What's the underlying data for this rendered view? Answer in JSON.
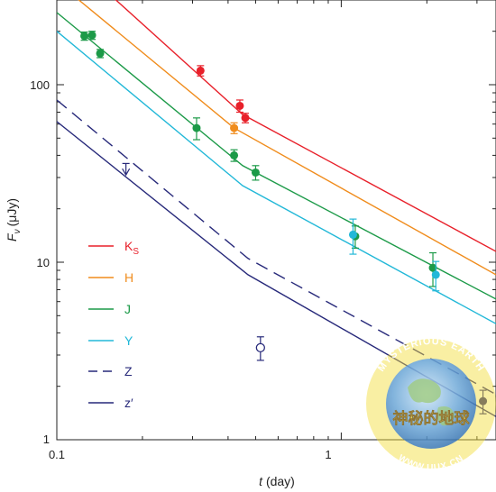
{
  "chart_data": {
    "type": "scatter",
    "xscale": "log",
    "yscale": "log",
    "xlim": [
      0.1,
      3.5
    ],
    "ylim": [
      1,
      300
    ],
    "grid": false,
    "legend_position": "left",
    "xticks": [
      0.1,
      1
    ],
    "xtick_labels": [
      "0.1",
      "1"
    ],
    "yticks": [
      1,
      10,
      100
    ],
    "ytick_labels": [
      "1",
      "10",
      "100"
    ],
    "xlabel_symbol": "t",
    "xlabel_unit": "(day)",
    "ylabel_symbol": "F",
    "ylabel_subscript": "ν",
    "ylabel_unit": "(μJy)",
    "series": [
      {
        "name": "K",
        "name_sub": "S",
        "color": "#e8202a",
        "style": "solid",
        "model": [
          [
            0.1,
            600
          ],
          [
            0.45,
            68
          ],
          [
            3.5,
            11.5
          ]
        ],
        "points": [
          {
            "x": 0.32,
            "y": 120,
            "err": 8
          },
          {
            "x": 0.44,
            "y": 76,
            "err": 6
          },
          {
            "x": 0.46,
            "y": 65,
            "err": 4
          }
        ]
      },
      {
        "name": "H",
        "color": "#f08c1c",
        "style": "solid",
        "model": [
          [
            0.1,
            380
          ],
          [
            0.42,
            57
          ],
          [
            3.5,
            8.5
          ]
        ],
        "points": [
          {
            "x": 0.42,
            "y": 57,
            "err": 4
          }
        ]
      },
      {
        "name": "J",
        "color": "#1c9a48",
        "style": "solid",
        "model": [
          [
            0.1,
            255
          ],
          [
            0.45,
            35
          ],
          [
            3.5,
            6.2
          ]
        ],
        "points": [
          {
            "x": 0.125,
            "y": 188,
            "err": 10
          },
          {
            "x": 0.133,
            "y": 190,
            "err": 10
          },
          {
            "x": 0.142,
            "y": 150,
            "err": 8
          },
          {
            "x": 0.31,
            "y": 57,
            "err": 8
          },
          {
            "x": 0.42,
            "y": 40,
            "err": 3
          },
          {
            "x": 0.5,
            "y": 32,
            "err": 3
          },
          {
            "x": 1.12,
            "y": 14,
            "err": 2
          },
          {
            "x": 2.1,
            "y": 9.3,
            "err": 2
          }
        ]
      },
      {
        "name": "Y",
        "color": "#22b8d8",
        "style": "solid",
        "model": [
          [
            0.1,
            200
          ],
          [
            0.45,
            27
          ],
          [
            3.5,
            4.5
          ]
        ],
        "points": [
          {
            "x": 1.1,
            "y": 14.3,
            "err": 3.2
          },
          {
            "x": 2.15,
            "y": 8.5,
            "err": 1.6
          }
        ]
      },
      {
        "name": "Z",
        "color": "#27297a",
        "style": "dashed",
        "model": [
          [
            0.1,
            82
          ],
          [
            0.47,
            10.5
          ],
          [
            3.5,
            1.8
          ]
        ],
        "points": [],
        "upper_limits": [
          {
            "x": 0.175,
            "y": 31,
            "top": 36
          }
        ]
      },
      {
        "name": "z′",
        "color": "#27297a",
        "style": "solid",
        "model": [
          [
            0.1,
            62
          ],
          [
            0.47,
            8.5
          ],
          [
            3.5,
            1.35
          ]
        ],
        "points": [
          {
            "x": 3.15,
            "y": 1.65,
            "err": 0.25
          }
        ],
        "open_points": [
          {
            "x": 0.52,
            "y": 3.3,
            "err": 0.5
          }
        ]
      }
    ]
  },
  "watermark": {
    "top_text": "MYSTERIOUS EARTH",
    "middle_text": "神秘的地球",
    "bottom_text": "WWW.UUX.CN",
    "colors": {
      "ring": "#f3dc3a",
      "text": "#ffffff",
      "middle_text": "#f4e24a",
      "globe": "#6fa9d8"
    }
  }
}
